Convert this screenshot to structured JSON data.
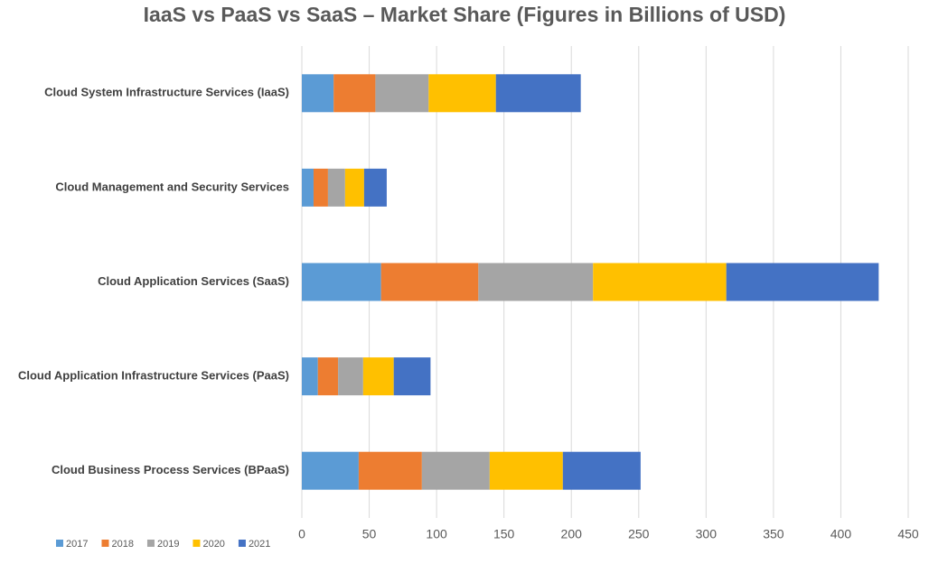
{
  "chart_data": {
    "type": "stacked_bar_horizontal",
    "title": "IaaS vs PaaS vs SaaS – Market Share (Figures in Billions of USD)",
    "categories": [
      "Cloud System Infrastructure Services (IaaS)",
      "Cloud Management and Security Services",
      "Cloud Application Services (SaaS)",
      "Cloud Application Infrastructure Services (PaaS)",
      "Cloud Business Process Services (BPaaS)"
    ],
    "series": [
      {
        "name": "2017",
        "color": "#5b9bd5",
        "values": [
          23.6,
          8.7,
          58.8,
          11.9,
          42.2
        ]
      },
      {
        "name": "2018",
        "color": "#ed7d31",
        "values": [
          31.0,
          10.7,
          72.2,
          15.0,
          46.9
        ]
      },
      {
        "name": "2019",
        "color": "#a5a5a5",
        "values": [
          39.5,
          12.7,
          85.1,
          18.6,
          50.3
        ]
      },
      {
        "name": "2020",
        "color": "#ffc000",
        "values": [
          49.9,
          14.1,
          98.9,
          22.7,
          54.3
        ]
      },
      {
        "name": "2021",
        "color": "#4472c4",
        "values": [
          63.0,
          16.8,
          113.1,
          27.3,
          57.7
        ]
      }
    ],
    "xlim": [
      0,
      450
    ],
    "xticks": [
      0,
      50,
      100,
      150,
      200,
      250,
      300,
      350,
      400,
      450
    ],
    "grid": true,
    "legend": "bottom-left"
  }
}
